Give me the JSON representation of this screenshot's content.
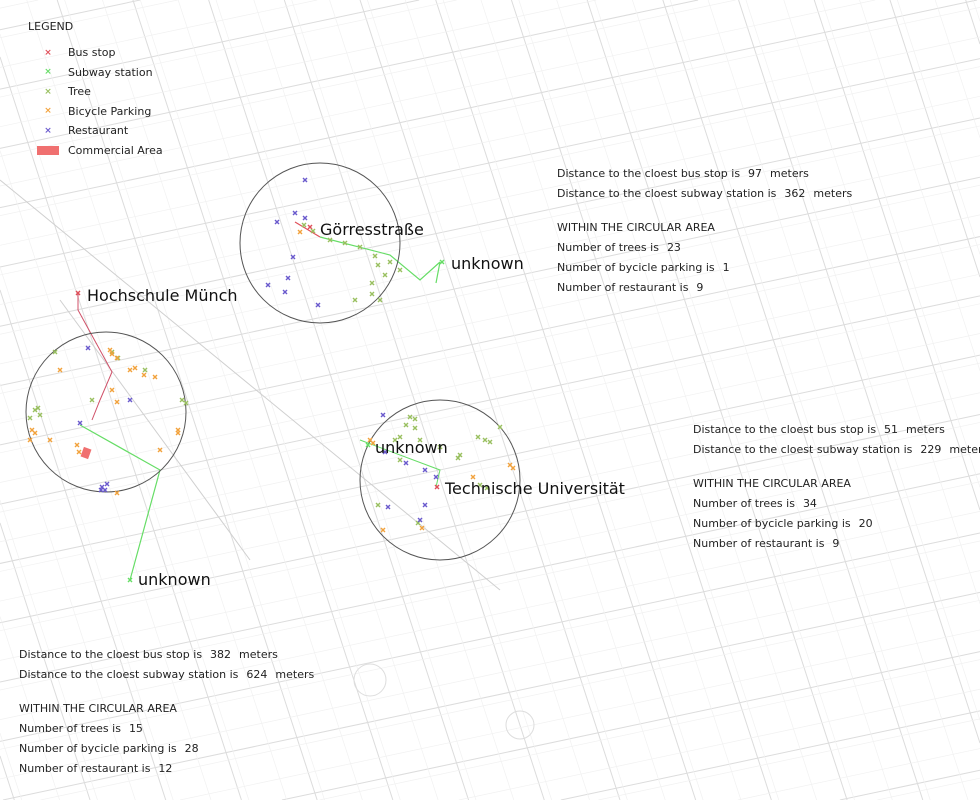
{
  "legend": {
    "title": "LEGEND",
    "items": [
      {
        "label": "Bus stop",
        "color": "#e0505a",
        "icon": "cross-marker"
      },
      {
        "label": "Subway station",
        "color": "#66dd66",
        "icon": "cross-marker"
      },
      {
        "label": "Tree",
        "color": "#99c060",
        "icon": "cross-marker"
      },
      {
        "label": "Bicycle Parking",
        "color": "#f2a23c",
        "icon": "cross-marker"
      },
      {
        "label": "Restaurant",
        "color": "#6a5acd",
        "icon": "cross-marker"
      },
      {
        "label": "Commercial Area",
        "color": "#f07070",
        "icon": "filled-rectangle"
      }
    ]
  },
  "map_labels": {
    "gorresstrasse": "Görresstraße",
    "gorres_subway": "unknown",
    "hochschule": "Hochschule Münch",
    "tu_subway": "unknown",
    "tu": "Technische Universität",
    "hochschule_subway": "unknown"
  },
  "sites": [
    {
      "name": "Görresstraße",
      "bus_prefix": "Distance to the cloest bus stop is",
      "bus_distance": "97",
      "bus_unit": "meters",
      "subway_prefix": "Distance to the cloest subway station is",
      "subway_distance": "362",
      "subway_unit": "meters",
      "section": "WITHIN THE CIRCULAR AREA",
      "trees_prefix": "Number of trees is",
      "trees": "23",
      "bike_prefix": "Number of bycicle parking is",
      "bike": "1",
      "rest_prefix": "Number of restaurant is",
      "rest": "9"
    },
    {
      "name": "Technische Universität",
      "bus_prefix": "Distance to the cloest bus stop is",
      "bus_distance": "51",
      "bus_unit": "meters",
      "subway_prefix": "Distance to the cloest subway station is",
      "subway_distance": "229",
      "subway_unit": "meters",
      "section": "WITHIN THE CIRCULAR AREA",
      "trees_prefix": "Number of trees is",
      "trees": "34",
      "bike_prefix": "Number of bycicle parking is",
      "bike": "20",
      "rest_prefix": "Number of restaurant is",
      "rest": "9"
    },
    {
      "name": "Hochschule Münch",
      "bus_prefix": "Distance to the cloest bus stop is",
      "bus_distance": "382",
      "bus_unit": "meters",
      "subway_prefix": "Distance to the cloest subway station is",
      "subway_distance": "624",
      "subway_unit": "meters",
      "section": "WITHIN THE CIRCULAR AREA",
      "trees_prefix": "Number of trees is",
      "trees": "15",
      "bike_prefix": "Number of bycicle parking is",
      "bike": "28",
      "rest_prefix": "Number of restaurant is",
      "rest": "12"
    }
  ]
}
